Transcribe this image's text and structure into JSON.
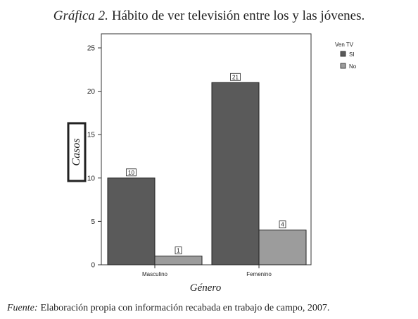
{
  "figure": {
    "title_prefix": "Gráfica 2.",
    "title_text": "Hábito de ver televisión entre los y las jóvenes.",
    "source_prefix": "Fuente:",
    "source_text": "Elaboración propia con información recabada en trabajo de campo, 2007."
  },
  "chart_data": {
    "type": "bar",
    "categories": [
      "Masculino",
      "Femenino"
    ],
    "series": [
      {
        "name": "SI",
        "values": [
          10,
          21
        ],
        "color": "#5a5a5a"
      },
      {
        "name": "No",
        "values": [
          1,
          4
        ],
        "color": "#9c9c9c"
      }
    ],
    "xlabel": "Género",
    "ylabel": "Casos",
    "ylim": [
      0,
      25
    ],
    "yticks": [
      0,
      5,
      10,
      15,
      20,
      25
    ],
    "legend_title": "Ven TV",
    "legend_position": "top-right",
    "grid": false
  }
}
